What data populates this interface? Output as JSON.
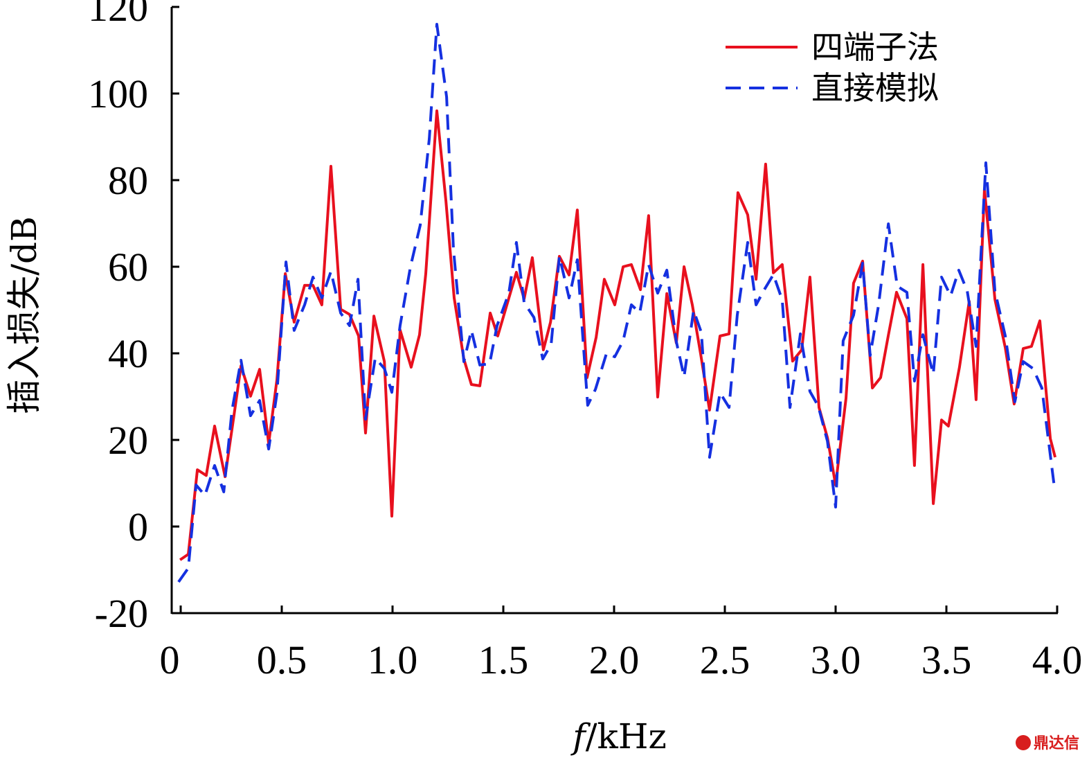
{
  "chart_data": {
    "type": "line",
    "title": "",
    "xlabel_italic": "f",
    "xlabel_rest": "/kHz",
    "ylabel": "插入损失/dB",
    "xlim": [
      0,
      4.0
    ],
    "ylim": [
      -20,
      120
    ],
    "xticks": [
      "0",
      "0.5",
      "1.0",
      "1.5",
      "2.0",
      "2.5",
      "3.0",
      "3.5",
      "4.0"
    ],
    "xtick_values": [
      0,
      0.5,
      1.0,
      1.5,
      2.0,
      2.5,
      3.0,
      3.5,
      4.0
    ],
    "yticks": [
      "-20",
      "0",
      "20",
      "40",
      "60",
      "80",
      "100",
      "120"
    ],
    "ytick_values": [
      -20,
      0,
      20,
      40,
      60,
      80,
      100,
      120
    ],
    "grid": false,
    "legend_position": "top-right",
    "series": [
      {
        "name": "四端子法",
        "color": "#e8101e",
        "style": "solid",
        "x": [
          0.041,
          0.078,
          0.119,
          0.159,
          0.197,
          0.244,
          0.284,
          0.316,
          0.359,
          0.4,
          0.441,
          0.478,
          0.516,
          0.556,
          0.603,
          0.641,
          0.681,
          0.722,
          0.766,
          0.806,
          0.847,
          0.878,
          0.916,
          0.963,
          0.997,
          1.034,
          1.084,
          1.122,
          1.15,
          1.2,
          1.241,
          1.278,
          1.322,
          1.356,
          1.394,
          1.441,
          1.475,
          1.559,
          1.594,
          1.631,
          1.681,
          1.713,
          1.753,
          1.797,
          1.834,
          1.878,
          1.919,
          1.956,
          2.003,
          2.041,
          2.078,
          2.119,
          2.156,
          2.197,
          2.238,
          2.281,
          2.316,
          2.353,
          2.391,
          2.431,
          2.478,
          2.519,
          2.559,
          2.603,
          2.641,
          2.684,
          2.719,
          2.759,
          2.806,
          2.847,
          2.884,
          2.925,
          2.963,
          3.0,
          3.047,
          3.081,
          3.122,
          3.166,
          3.203,
          3.238,
          3.275,
          3.322,
          3.356,
          3.394,
          3.441,
          3.478,
          3.509,
          3.559,
          3.603,
          3.634,
          3.672,
          3.719,
          3.766,
          3.806,
          3.847,
          3.884,
          3.922,
          3.969,
          3.991
        ],
        "y": [
          -7.7,
          -6.4,
          13.1,
          11.8,
          23.2,
          11.5,
          25.6,
          37.1,
          30.1,
          36.3,
          19.2,
          33.9,
          58.4,
          47.2,
          55.7,
          55.7,
          51.2,
          83.2,
          50.2,
          49.0,
          44.0,
          21.6,
          48.6,
          38.1,
          2.4,
          45.4,
          36.8,
          44.3,
          58.4,
          96.0,
          75.2,
          52.8,
          38.7,
          32.8,
          32.5,
          49.3,
          44.0,
          58.7,
          52.6,
          62.1,
          40.8,
          47.2,
          62.4,
          58.1,
          73.1,
          34.4,
          43.7,
          57.1,
          51.2,
          60.0,
          60.5,
          54.7,
          71.8,
          29.9,
          53.8,
          42.4,
          60.0,
          51.2,
          39.8,
          26.9,
          44.0,
          44.5,
          77.1,
          72.0,
          57.1,
          83.7,
          58.6,
          60.5,
          38.2,
          40.8,
          57.6,
          27.5,
          20.5,
          9.6,
          29.6,
          56.2,
          61.3,
          32.0,
          34.4,
          44.2,
          54.1,
          48.0,
          14.1,
          60.5,
          5.3,
          24.6,
          23.2,
          36.8,
          52.0,
          29.3,
          77.9,
          52.5,
          41.3,
          28.3,
          41.1,
          41.6,
          47.5,
          20.3,
          16.0
        ]
      },
      {
        "name": "直接模拟",
        "color": "#1530e0",
        "style": "dashed",
        "x": [
          0.034,
          0.078,
          0.113,
          0.153,
          0.197,
          0.238,
          0.275,
          0.316,
          0.359,
          0.4,
          0.441,
          0.478,
          0.519,
          0.556,
          0.603,
          0.641,
          0.681,
          0.722,
          0.766,
          0.806,
          0.844,
          0.878,
          0.922,
          0.963,
          0.997,
          1.034,
          1.081,
          1.125,
          1.166,
          1.2,
          1.244,
          1.275,
          1.322,
          1.356,
          1.394,
          1.438,
          1.472,
          1.525,
          1.559,
          1.594,
          1.638,
          1.678,
          1.716,
          1.753,
          1.797,
          1.834,
          1.881,
          1.916,
          1.966,
          2.003,
          2.041,
          2.078,
          2.116,
          2.156,
          2.197,
          2.238,
          2.281,
          2.316,
          2.359,
          2.394,
          2.431,
          2.478,
          2.519,
          2.556,
          2.603,
          2.641,
          2.678,
          2.719,
          2.759,
          2.794,
          2.841,
          2.884,
          2.922,
          2.963,
          3.0,
          3.034,
          3.081,
          3.122,
          3.156,
          3.194,
          3.238,
          3.278,
          3.322,
          3.356,
          3.394,
          3.441,
          3.478,
          3.519,
          3.556,
          3.594,
          3.634,
          3.678,
          3.719,
          3.766,
          3.809,
          3.847,
          3.891,
          3.931,
          3.988
        ],
        "y": [
          -12.8,
          -9.6,
          9.6,
          7.2,
          14.1,
          8.0,
          26.7,
          38.4,
          25.6,
          29.1,
          17.9,
          30.7,
          61.1,
          45.3,
          51.2,
          57.6,
          52.8,
          58.9,
          49.3,
          46.4,
          57.1,
          24.8,
          38.9,
          36.5,
          31.0,
          46.4,
          60.0,
          69.6,
          89.6,
          116.0,
          99.2,
          64.0,
          38.1,
          45.3,
          37.3,
          37.6,
          46.4,
          53.9,
          65.6,
          51.7,
          48.3,
          38.7,
          42.1,
          62.4,
          52.8,
          61.6,
          28.0,
          31.7,
          40.0,
          39.2,
          42.9,
          51.2,
          49.4,
          60.5,
          53.9,
          59.2,
          42.7,
          34.6,
          49.9,
          44.8,
          16.0,
          30.9,
          27.5,
          48.8,
          65.6,
          51.2,
          54.7,
          58.2,
          52.3,
          27.5,
          44.5,
          31.2,
          27.8,
          19.7,
          4.5,
          42.9,
          48.8,
          60.8,
          39.5,
          51.2,
          69.9,
          55.5,
          54.1,
          33.6,
          44.3,
          35.2,
          57.6,
          53.3,
          59.2,
          54.4,
          41.6,
          84.0,
          54.4,
          44.0,
          28.8,
          38.1,
          36.5,
          32.0,
          8.8
        ]
      }
    ]
  },
  "watermark": "鼎达信"
}
